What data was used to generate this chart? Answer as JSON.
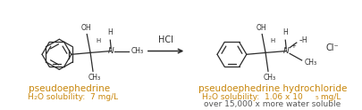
{
  "bg_color": "#ffffff",
  "sc": "#2c2c2c",
  "orange": "#c8860a",
  "gray": "#555555",
  "arrow_label": "HCl",
  "left_title": "pseudoephedrine",
  "right_title": "pseudoephedrine hydrochloride",
  "left_sol": "H₂O solubility:  7 mg/L",
  "right_sol_pre": "H₂O solubility:  1.06 x 10",
  "right_sol_exp": "5",
  "right_sol_post": " mg/L",
  "right_sub2": "over 15,000 x more water soluble",
  "figw": 4.06,
  "figh": 1.24,
  "dpi": 100
}
